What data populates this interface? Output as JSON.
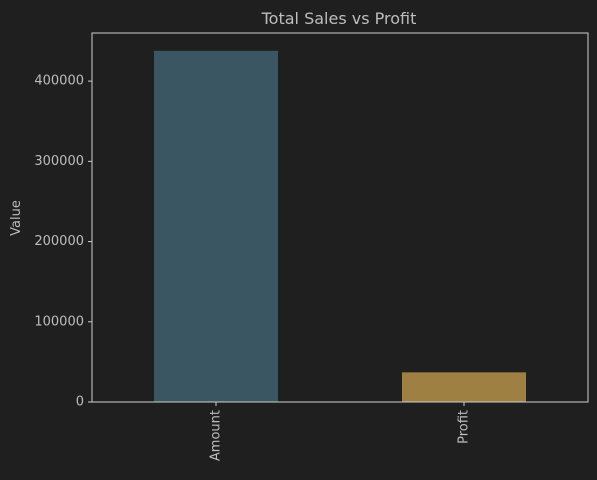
{
  "chart_data": {
    "type": "bar",
    "title": "Total Sales vs Profit",
    "xlabel": "",
    "ylabel": "Value",
    "categories": [
      "Amount",
      "Profit"
    ],
    "values": [
      437771,
      36963
    ],
    "ylim": [
      0,
      460000
    ],
    "yticks": [
      0,
      100000,
      200000,
      300000,
      400000
    ],
    "ytick_labels": [
      "0",
      "100000",
      "200000",
      "300000",
      "400000"
    ],
    "bar_colors": [
      "#3a5663",
      "#9e8142"
    ],
    "grid": false,
    "legend": "none",
    "x_tick_rotation": "vertical"
  },
  "theme": {
    "background": "#1f1f1f",
    "axes_background": "#1f1f1f",
    "spine_color": "#cfcfcf",
    "text_color": "#bdbdbd"
  }
}
